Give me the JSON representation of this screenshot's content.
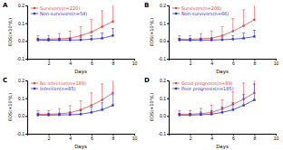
{
  "chart_data": [
    {
      "type": "line",
      "title": "A",
      "x_label": "Days",
      "y_label": "EOS(×10⁹/L)",
      "x": [
        1,
        2,
        3,
        4,
        5,
        6,
        7,
        8
      ],
      "xlim": [
        0,
        10
      ],
      "xticks": [
        2,
        4,
        6,
        8,
        10
      ],
      "ylim": [
        -0.1,
        0.2
      ],
      "yticks": [
        {
          "value": -0.1,
          "label": "-0.1"
        },
        {
          "value": 0,
          "label": "0.0"
        },
        0.1,
        0.2
      ],
      "legend": "top-left",
      "series": [
        {
          "name": "Survivors(n=220)",
          "color": "#ee4444",
          "marker": "circle",
          "line_style": "solid",
          "values": [
            0.01,
            0.01,
            0.012,
            0.015,
            0.03,
            0.05,
            0.08,
            0.11
          ],
          "errors": [
            0.02,
            0.02,
            0.03,
            0.04,
            0.05,
            0.07,
            0.09,
            0.12
          ]
        },
        {
          "name": "Non-survivors(n=54)",
          "color": "#3333cc",
          "marker": "square",
          "line_style": "solid",
          "values": [
            0.005,
            0.004,
            0.005,
            0.005,
            0.006,
            0.01,
            0.015,
            0.03
          ],
          "errors": [
            0.01,
            0.01,
            0.01,
            0.01,
            0.015,
            0.02,
            0.03,
            0.04
          ]
        }
      ]
    },
    {
      "type": "line",
      "title": "B",
      "x_label": "Days",
      "y_label": "EOS(×10⁹/L)",
      "x": [
        1,
        2,
        3,
        4,
        5,
        6,
        7,
        8
      ],
      "xlim": [
        0,
        10
      ],
      "xticks": [
        2,
        4,
        6,
        8,
        10
      ],
      "ylim": [
        -0.1,
        0.2
      ],
      "yticks": [
        {
          "value": -0.1,
          "label": "-0.1"
        },
        {
          "value": 0,
          "label": "0.0"
        },
        0.1,
        0.2
      ],
      "legend": "top-left",
      "series": [
        {
          "name": "Survivors(n=208)",
          "color": "#ee4444",
          "marker": "circle",
          "line_style": "solid",
          "values": [
            0.01,
            0.01,
            0.012,
            0.016,
            0.03,
            0.055,
            0.085,
            0.12
          ],
          "errors": [
            0.02,
            0.02,
            0.03,
            0.04,
            0.05,
            0.07,
            0.09,
            0.12
          ]
        },
        {
          "name": "Non-survivors(n=66)",
          "color": "#3333cc",
          "marker": "square",
          "line_style": "solid",
          "values": [
            0.005,
            0.004,
            0.005,
            0.005,
            0.007,
            0.01,
            0.015,
            0.025
          ],
          "errors": [
            0.01,
            0.01,
            0.01,
            0.01,
            0.015,
            0.02,
            0.03,
            0.035
          ]
        }
      ]
    },
    {
      "type": "line",
      "title": "C",
      "x_label": "Days",
      "y_label": "EOS(×10⁹/L)",
      "x": [
        1,
        2,
        3,
        4,
        5,
        6,
        7,
        8
      ],
      "xlim": [
        0,
        10
      ],
      "xticks": [
        2,
        4,
        6,
        8,
        10
      ],
      "ylim": [
        -0.1,
        0.2
      ],
      "yticks": [
        {
          "value": -0.1,
          "label": "-0.1"
        },
        {
          "value": 0,
          "label": "0.0"
        },
        0.1,
        0.2
      ],
      "legend": "top-left",
      "series": [
        {
          "name": "No infection(n=189)",
          "color": "#ee4444",
          "marker": "circle",
          "line_style": "solid",
          "values": [
            0.01,
            0.01,
            0.012,
            0.018,
            0.035,
            0.06,
            0.09,
            0.13
          ],
          "errors": [
            0.02,
            0.02,
            0.03,
            0.04,
            0.05,
            0.07,
            0.09,
            0.12
          ]
        },
        {
          "name": "Infection(n=85)",
          "color": "#3333cc",
          "marker": "square",
          "line_style": "solid",
          "values": [
            0.005,
            0.005,
            0.006,
            0.007,
            0.01,
            0.02,
            0.035,
            0.06
          ],
          "errors": [
            0.01,
            0.01,
            0.01,
            0.015,
            0.02,
            0.03,
            0.04,
            0.06
          ]
        }
      ]
    },
    {
      "type": "line",
      "title": "D",
      "x_label": "Days",
      "y_label": "EOS(×10⁹/L)",
      "x": [
        1,
        2,
        3,
        4,
        5,
        6,
        7,
        8
      ],
      "xlim": [
        0,
        10
      ],
      "xticks": [
        2,
        4,
        6,
        8,
        10
      ],
      "ylim": [
        -0.1,
        0.2
      ],
      "yticks": [
        {
          "value": -0.1,
          "label": "-0.1"
        },
        {
          "value": 0,
          "label": "0.0"
        },
        0.1,
        0.2
      ],
      "legend": "top-left",
      "series": [
        {
          "name": "Good prognosis(n=89)",
          "color": "#ee4444",
          "marker": "circle",
          "line_style": "solid",
          "values": [
            0.01,
            0.01,
            0.013,
            0.02,
            0.04,
            0.065,
            0.095,
            0.13
          ],
          "errors": [
            0.02,
            0.02,
            0.03,
            0.04,
            0.05,
            0.07,
            0.09,
            0.11
          ]
        },
        {
          "name": "Poor prognosis(n=185)",
          "color": "#3333cc",
          "marker": "square",
          "line_style": "solid",
          "values": [
            0.005,
            0.005,
            0.007,
            0.01,
            0.02,
            0.035,
            0.06,
            0.09
          ],
          "errors": [
            0.01,
            0.01,
            0.015,
            0.02,
            0.03,
            0.04,
            0.06,
            0.09
          ]
        }
      ]
    }
  ]
}
